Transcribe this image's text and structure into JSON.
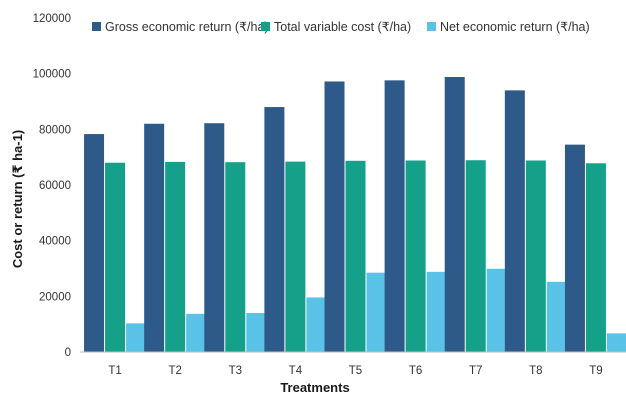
{
  "chart_data": {
    "type": "bar",
    "title": "",
    "xlabel": "Treatments",
    "ylabel": "Cost or return (₹ ha-1)",
    "categories": [
      "T1",
      "T2",
      "T3",
      "T4",
      "T5",
      "T6",
      "T7",
      "T8",
      "T9"
    ],
    "ylim": [
      0,
      120000
    ],
    "yticks": [
      0,
      20000,
      40000,
      60000,
      80000,
      100000,
      120000
    ],
    "yticklabels": [
      "0",
      "20000",
      "40000",
      "60000",
      "80000",
      "100000",
      "120000"
    ],
    "grid": false,
    "legend_position": "top",
    "series": [
      {
        "name": "Gross economic return (₹/ha)",
        "color": "#2e5a8a",
        "values": [
          78300,
          82000,
          82200,
          88000,
          97200,
          97600,
          98800,
          94000,
          74500
        ]
      },
      {
        "name": "Total variable cost (₹/ha)",
        "color": "#15a08a",
        "values": [
          68000,
          68300,
          68200,
          68400,
          68700,
          68800,
          68900,
          68800,
          67800
        ]
      },
      {
        "name": "Net economic return (₹/ha)",
        "color": "#5bc2e7",
        "values": [
          10300,
          13700,
          14000,
          19600,
          28500,
          28800,
          29900,
          25200,
          6700
        ]
      }
    ]
  }
}
